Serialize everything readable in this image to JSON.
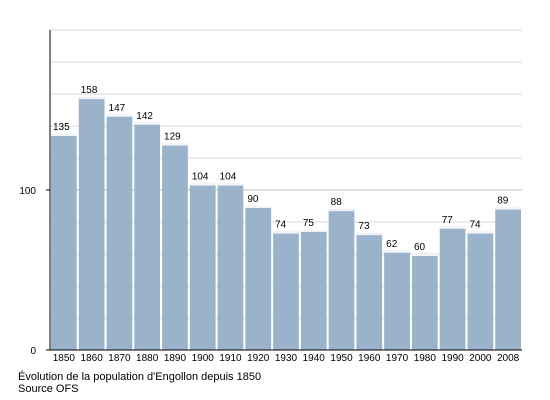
{
  "chart_data": {
    "type": "bar",
    "categories": [
      "1850",
      "1860",
      "1870",
      "1880",
      "1890",
      "1900",
      "1910",
      "1920",
      "1930",
      "1940",
      "1950",
      "1960",
      "1970",
      "1980",
      "1990",
      "2000",
      "2008"
    ],
    "values": [
      135,
      158,
      147,
      142,
      129,
      104,
      104,
      90,
      74,
      75,
      88,
      73,
      62,
      60,
      77,
      74,
      89
    ],
    "ylim": [
      0,
      200
    ],
    "yticks": [
      0,
      100
    ],
    "grid": true,
    "bar_color": "#9ab3cb",
    "bar_highlight_color": "#f2f5f8",
    "grid_color": "#d8d8d8",
    "axis_color": "#000000"
  },
  "caption": {
    "line1": "Évolution de la population d'Engollon depuis 1850",
    "line2": "Source OFS"
  }
}
